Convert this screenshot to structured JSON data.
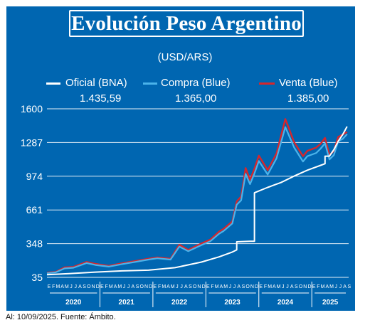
{
  "header": {
    "title": "Evolución Peso Argentino",
    "subtitle": "(USD/ARS)"
  },
  "legend": [
    {
      "label": "Oficial (BNA)",
      "value": "1.435,59",
      "color": "#ffffff"
    },
    {
      "label": "Compra (Blue)",
      "value": "1.365,00",
      "color": "#4bb3ea"
    },
    {
      "label": "Venta (Blue)",
      "value": "1.385,00",
      "color": "#d7262b"
    }
  ],
  "footnote": "Al: 10/09/2025. Fuente: Ámbito.",
  "chart_data": {
    "type": "line",
    "title": "Evolución Peso Argentino",
    "subtitle": "(USD/ARS)",
    "ylim": [
      35,
      1600
    ],
    "yticks": [
      "1600",
      "1287",
      "974",
      "661",
      "348",
      "35"
    ],
    "grid": "horizontal",
    "legend_position": "top",
    "x_start": "2020-01",
    "x_end": "2025-09",
    "year_labels": [
      "2020",
      "2021",
      "2022",
      "2023",
      "2024",
      "2025"
    ],
    "month_letters": [
      "E",
      "F",
      "M",
      "A",
      "M",
      "J",
      "J",
      "A",
      "S",
      "O",
      "N",
      "D"
    ],
    "series": [
      {
        "name": "Oficial (BNA)",
        "color": "#ffffff",
        "points": [
          [
            "2020-01",
            60
          ],
          [
            "2020-06",
            70
          ],
          [
            "2020-12",
            84
          ],
          [
            "2021-06",
            95
          ],
          [
            "2021-12",
            102
          ],
          [
            "2022-06",
            125
          ],
          [
            "2022-12",
            177
          ],
          [
            "2023-04",
            225
          ],
          [
            "2023-07",
            270
          ],
          [
            "2023-08",
            290
          ],
          [
            "2023-08",
            365
          ],
          [
            "2023-11",
            370
          ],
          [
            "2023-12",
            370
          ],
          [
            "2023-12",
            820
          ],
          [
            "2024-03",
            870
          ],
          [
            "2024-06",
            915
          ],
          [
            "2024-09",
            975
          ],
          [
            "2024-12",
            1030
          ],
          [
            "2025-03",
            1075
          ],
          [
            "2025-04",
            1090
          ],
          [
            "2025-04",
            1160
          ],
          [
            "2025-05",
            1160
          ],
          [
            "2025-06",
            1220
          ],
          [
            "2025-07",
            1300
          ],
          [
            "2025-08",
            1360
          ],
          [
            "2025-09",
            1435.59
          ]
        ]
      },
      {
        "name": "Compra (Blue)",
        "color": "#4bb3ea",
        "points": [
          [
            "2020-01",
            72
          ],
          [
            "2020-03",
            82
          ],
          [
            "2020-05",
            118
          ],
          [
            "2020-07",
            124
          ],
          [
            "2020-10",
            168
          ],
          [
            "2020-12",
            150
          ],
          [
            "2021-03",
            135
          ],
          [
            "2021-06",
            158
          ],
          [
            "2021-09",
            178
          ],
          [
            "2021-12",
            200
          ],
          [
            "2022-02",
            212
          ],
          [
            "2022-05",
            200
          ],
          [
            "2022-07",
            320
          ],
          [
            "2022-09",
            278
          ],
          [
            "2022-12",
            335
          ],
          [
            "2023-02",
            370
          ],
          [
            "2023-04",
            440
          ],
          [
            "2023-05",
            465
          ],
          [
            "2023-07",
            535
          ],
          [
            "2023-08",
            710
          ],
          [
            "2023-09",
            750
          ],
          [
            "2023-10",
            995
          ],
          [
            "2023-11",
            900
          ],
          [
            "2023-12",
            1000
          ],
          [
            "2024-01",
            1115
          ],
          [
            "2024-03",
            990
          ],
          [
            "2024-05",
            1140
          ],
          [
            "2024-07",
            1430
          ],
          [
            "2024-09",
            1240
          ],
          [
            "2024-11",
            1110
          ],
          [
            "2024-12",
            1160
          ],
          [
            "2025-02",
            1190
          ],
          [
            "2025-03",
            1230
          ],
          [
            "2025-04",
            1280
          ],
          [
            "2025-05",
            1130
          ],
          [
            "2025-06",
            1170
          ],
          [
            "2025-07",
            1300
          ],
          [
            "2025-08",
            1320
          ],
          [
            "2025-09",
            1365
          ]
        ]
      },
      {
        "name": "Venta (Blue)",
        "color": "#d7262b",
        "points": [
          [
            "2020-01",
            78
          ],
          [
            "2020-03",
            86
          ],
          [
            "2020-05",
            128
          ],
          [
            "2020-07",
            132
          ],
          [
            "2020-10",
            178
          ],
          [
            "2020-12",
            160
          ],
          [
            "2021-03",
            142
          ],
          [
            "2021-06",
            166
          ],
          [
            "2021-09",
            186
          ],
          [
            "2021-12",
            208
          ],
          [
            "2022-02",
            220
          ],
          [
            "2022-05",
            208
          ],
          [
            "2022-07",
            338
          ],
          [
            "2022-09",
            290
          ],
          [
            "2022-12",
            350
          ],
          [
            "2023-02",
            385
          ],
          [
            "2023-04",
            460
          ],
          [
            "2023-05",
            485
          ],
          [
            "2023-07",
            555
          ],
          [
            "2023-08",
            740
          ],
          [
            "2023-09",
            785
          ],
          [
            "2023-10",
            1050
          ],
          [
            "2023-11",
            940
          ],
          [
            "2023-12",
            1045
          ],
          [
            "2024-01",
            1165
          ],
          [
            "2024-03",
            1030
          ],
          [
            "2024-05",
            1185
          ],
          [
            "2024-07",
            1505
          ],
          [
            "2024-09",
            1290
          ],
          [
            "2024-11",
            1160
          ],
          [
            "2024-12",
            1210
          ],
          [
            "2025-02",
            1240
          ],
          [
            "2025-03",
            1275
          ],
          [
            "2025-04",
            1330
          ],
          [
            "2025-05",
            1170
          ],
          [
            "2025-06",
            1210
          ],
          [
            "2025-07",
            1340
          ],
          [
            "2025-08",
            1360
          ],
          [
            "2025-09",
            1385
          ]
        ]
      }
    ]
  }
}
